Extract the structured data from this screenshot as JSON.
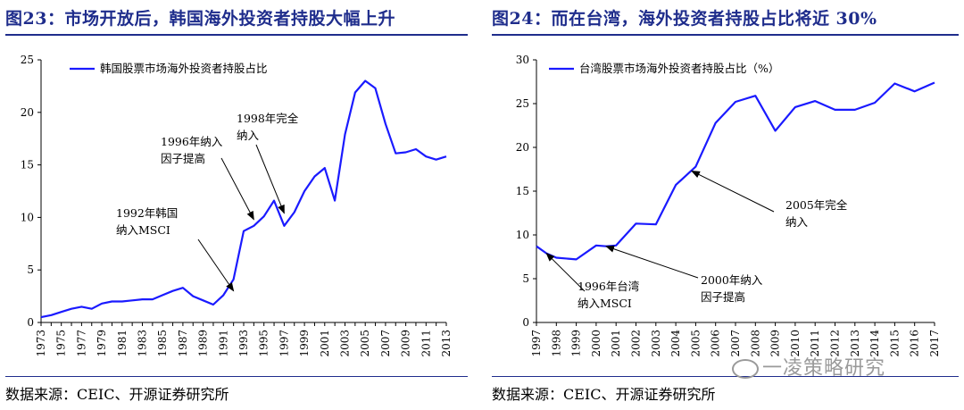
{
  "left": {
    "title": "图23：市场开放后，韩国海外投资者持股大幅上升",
    "source": "数据来源：CEIC、开源证券研究所",
    "chart_data": {
      "type": "line",
      "title": "",
      "xlabel": "",
      "ylabel": "",
      "ylim": [
        0,
        25
      ],
      "yticks": [
        0,
        5,
        10,
        15,
        20,
        25
      ],
      "xticks": [
        "1973",
        "1975",
        "1977",
        "1979",
        "1981",
        "1983",
        "1985",
        "1987",
        "1989",
        "1991",
        "1993",
        "1995",
        "1997",
        "1999",
        "2001",
        "2003",
        "2005",
        "2007",
        "2009",
        "2011",
        "2013"
      ],
      "legend": "top-left",
      "color": "#1a1aff",
      "series": [
        {
          "name": "韩国股票市场海外投资者持股占比",
          "x": [
            1973,
            1974,
            1975,
            1976,
            1977,
            1978,
            1979,
            1980,
            1981,
            1982,
            1983,
            1984,
            1985,
            1986,
            1987,
            1988,
            1989,
            1990,
            1991,
            1992,
            1993,
            1994,
            1995,
            1996,
            1997,
            1998,
            1999,
            2000,
            2001,
            2002,
            2003,
            2004,
            2005,
            2006,
            2007,
            2008,
            2009,
            2010,
            2011,
            2012,
            2013
          ],
          "values": [
            0.5,
            0.7,
            1.0,
            1.3,
            1.5,
            1.3,
            1.8,
            2.0,
            2.0,
            2.1,
            2.2,
            2.2,
            2.6,
            3.0,
            3.3,
            2.5,
            2.1,
            1.7,
            2.6,
            4.1,
            8.7,
            9.2,
            10.1,
            11.6,
            9.2,
            10.5,
            12.5,
            13.9,
            14.7,
            11.6,
            17.9,
            21.9,
            23.0,
            22.3,
            18.9,
            16.1,
            16.2,
            16.5,
            15.8,
            15.5,
            15.8
          ]
        }
      ],
      "annotations": [
        {
          "lines": [
            "1992年韩国",
            "纳入MSCI"
          ],
          "x": 1992,
          "y": 3.0
        },
        {
          "lines": [
            "1996年纳入",
            "因子提高"
          ],
          "x": 1994,
          "y": 9.8
        },
        {
          "lines": [
            "1998年完全",
            "纳入"
          ],
          "x": 1997,
          "y": 10.4
        }
      ]
    }
  },
  "right": {
    "title": "图24：而在台湾，海外投资者持股占比将近 30%",
    "source": "数据来源：CEIC、开源证券研究所",
    "chart_data": {
      "type": "line",
      "title": "",
      "xlabel": "",
      "ylabel": "",
      "ylim": [
        0,
        30
      ],
      "yticks": [
        0,
        5,
        10,
        15,
        20,
        25,
        30
      ],
      "xticks": [
        "1997",
        "1998",
        "1999",
        "2000",
        "2001",
        "2002",
        "2003",
        "2004",
        "2005",
        "2006",
        "2007",
        "2008",
        "2009",
        "2010",
        "2011",
        "2012",
        "2013",
        "2014",
        "2015",
        "2016",
        "2017"
      ],
      "legend": "top-left",
      "color": "#1a1aff",
      "series": [
        {
          "name": "台湾股票市场海外投资者持股占比（%）",
          "x": [
            1997,
            1997.5,
            1998,
            1999,
            2000,
            2000.5,
            2001,
            2002,
            2003,
            2004,
            2005,
            2006,
            2007,
            2008,
            2009,
            2010,
            2011,
            2012,
            2013,
            2014,
            2015,
            2016,
            2017
          ],
          "values": [
            8.7,
            7.9,
            7.4,
            7.2,
            8.8,
            8.7,
            8.8,
            11.3,
            11.2,
            15.7,
            17.8,
            22.8,
            25.2,
            25.9,
            21.9,
            24.6,
            25.3,
            24.3,
            24.3,
            25.1,
            27.3,
            26.4,
            27.4
          ]
        }
      ],
      "annotations": [
        {
          "lines": [
            "1996年台湾",
            "纳入MSCI"
          ],
          "x": 1997.5,
          "y": 7.9
        },
        {
          "lines": [
            "2000年纳入",
            "因子提高"
          ],
          "x": 2000.5,
          "y": 8.7
        },
        {
          "lines": [
            "2005年完全",
            "纳入"
          ],
          "x": 2004.8,
          "y": 17.3
        }
      ]
    }
  },
  "watermark": "一凌策略研究"
}
